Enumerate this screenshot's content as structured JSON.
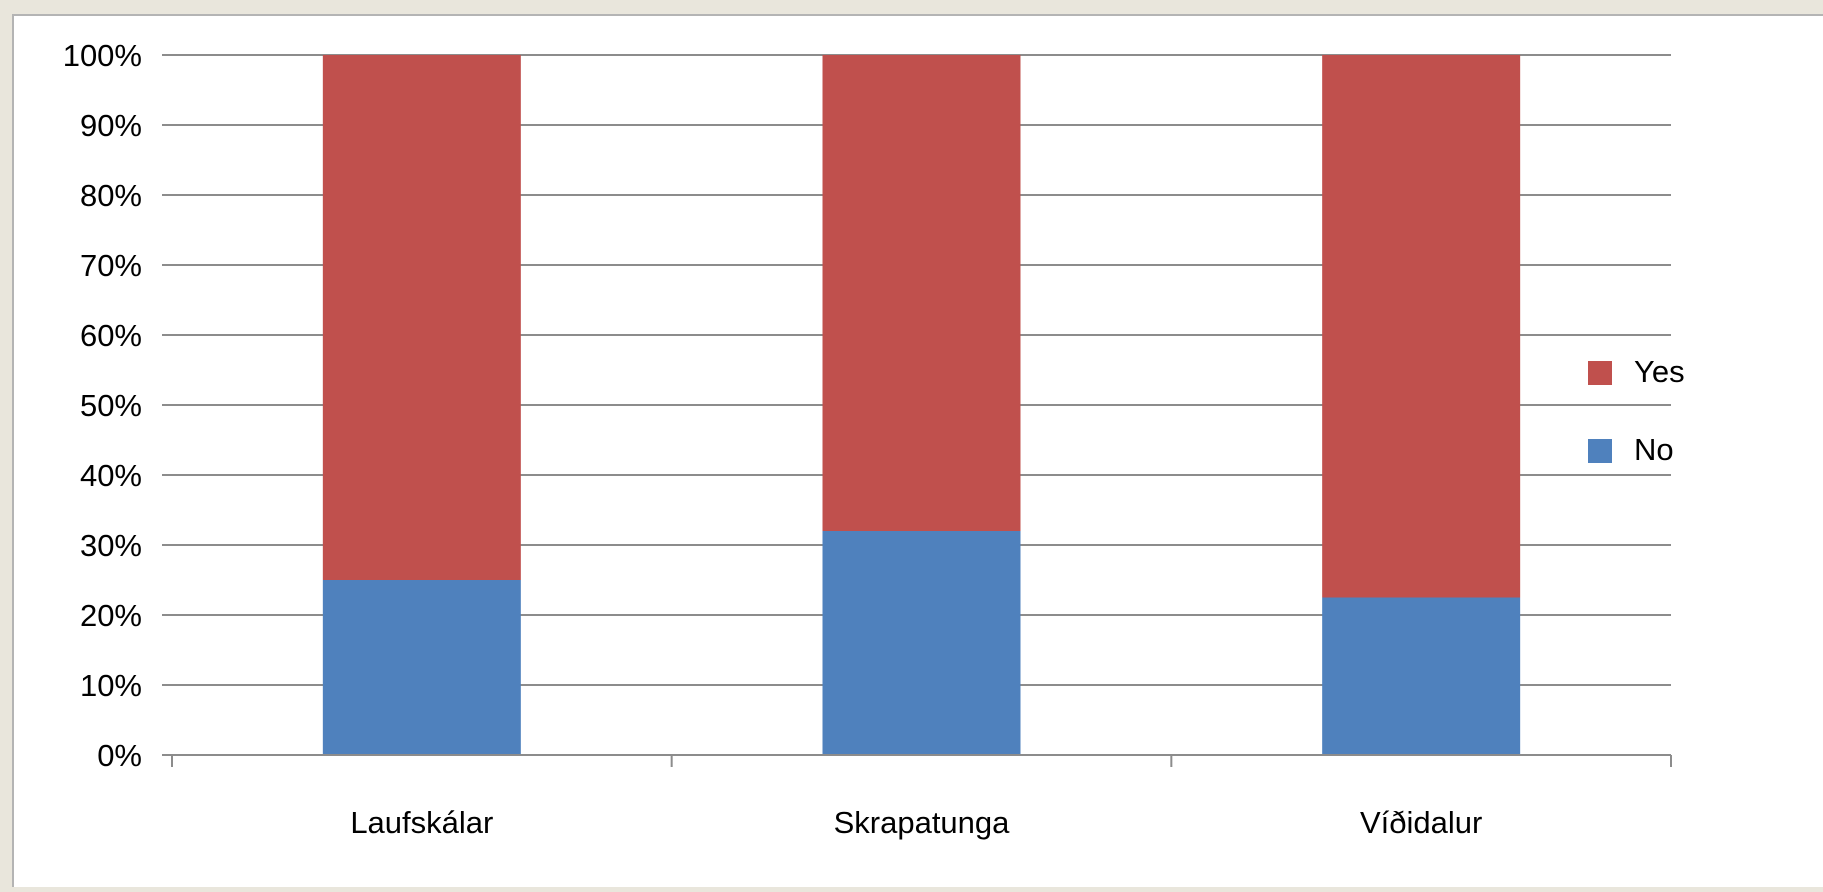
{
  "chart_data": {
    "type": "bar",
    "stacked": true,
    "percent_stacked": true,
    "categories": [
      "Laufskálar",
      "Skrapatunga",
      "Víðidalur"
    ],
    "series": [
      {
        "name": "No",
        "values": [
          25,
          32,
          22.5
        ],
        "color": "#4f81bd"
      },
      {
        "name": "Yes",
        "values": [
          75,
          68,
          77.5
        ],
        "color": "#c0504d"
      }
    ],
    "y_tick_labels": [
      "0%",
      "10%",
      "20%",
      "30%",
      "40%",
      "50%",
      "60%",
      "70%",
      "80%",
      "90%",
      "100%"
    ],
    "ylim": [
      0,
      100
    ],
    "grid": true,
    "gridline_color": "#8c8c8c",
    "legend": {
      "placement": "right",
      "entries": [
        {
          "label": "Yes",
          "color": "#c0504d"
        },
        {
          "label": "No",
          "color": "#4f81bd"
        }
      ]
    }
  }
}
